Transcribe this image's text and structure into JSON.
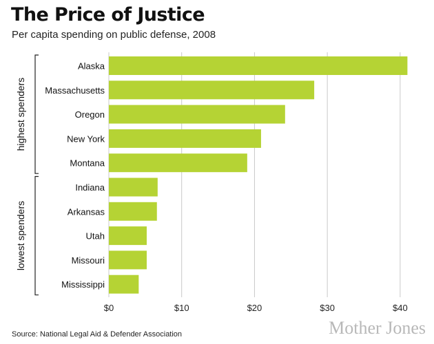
{
  "title": "The Price of Justice",
  "subtitle": "Per capita spending on public defense, 2008",
  "source": "Source: National Legal Aid & Defender Association",
  "logo": "Mother Jones",
  "colors": {
    "bar": "#b5d334",
    "grid": "#c8c8c8",
    "bracket": "#222222"
  },
  "chart_data": {
    "type": "bar",
    "orientation": "horizontal",
    "categories": [
      "Alaska",
      "Massachusetts",
      "Oregon",
      "New York",
      "Montana",
      "Indiana",
      "Arkansas",
      "Utah",
      "Missouri",
      "Mississippi"
    ],
    "values": [
      41.0,
      28.2,
      24.2,
      20.9,
      19.0,
      6.7,
      6.6,
      5.2,
      5.2,
      4.1
    ],
    "groups": [
      {
        "label": "highest spenders",
        "categories": [
          "Alaska",
          "Massachusetts",
          "Oregon",
          "New York",
          "Montana"
        ]
      },
      {
        "label": "lowest spenders",
        "categories": [
          "Indiana",
          "Arkansas",
          "Utah",
          "Missouri",
          "Mississippi"
        ]
      }
    ],
    "xlim": [
      0,
      42
    ],
    "xticks": [
      0,
      10,
      20,
      30,
      40
    ],
    "xtick_labels": [
      "$0",
      "$10",
      "$20",
      "$30",
      "$40"
    ],
    "grid": true
  }
}
